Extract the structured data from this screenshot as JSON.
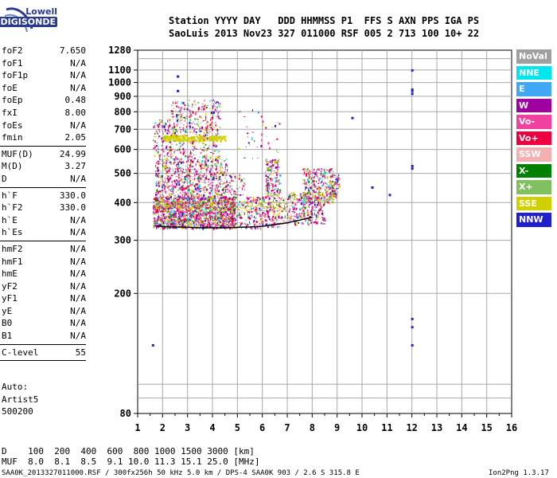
{
  "logo": {
    "line1": "Lowell",
    "line2": "DIGISONDE"
  },
  "header": {
    "row1": "Station YYYY DAY   DDD HHMMSS P1  FFS S AXN PPS IGA PS",
    "row2": "SaoLuis 2013 Nov23 327 011000 RSF 005 2 713 100 10+ 22"
  },
  "params": {
    "group1": [
      {
        "k": "foF2",
        "v": "7.650"
      },
      {
        "k": "foF1",
        "v": "N/A"
      },
      {
        "k": "foF1p",
        "v": "N/A"
      },
      {
        "k": "foE",
        "v": "N/A"
      },
      {
        "k": "foEp",
        "v": "0.48"
      },
      {
        "k": "fxI",
        "v": "8.00"
      },
      {
        "k": "foEs",
        "v": "N/A"
      },
      {
        "k": "fmin",
        "v": "2.05"
      }
    ],
    "group2": [
      {
        "k": "MUF(D)",
        "v": "24.99"
      },
      {
        "k": "M(D)",
        "v": "3.27"
      },
      {
        "k": "D",
        "v": "N/A"
      }
    ],
    "group3": [
      {
        "k": "h`F",
        "v": "330.0"
      },
      {
        "k": "h`F2",
        "v": "330.0"
      },
      {
        "k": "h`E",
        "v": "N/A"
      },
      {
        "k": "h`Es",
        "v": "N/A"
      }
    ],
    "group4": [
      {
        "k": "hmF2",
        "v": "N/A"
      },
      {
        "k": "hmF1",
        "v": "N/A"
      },
      {
        "k": "hmE",
        "v": "N/A"
      },
      {
        "k": "yF2",
        "v": "N/A"
      },
      {
        "k": "yF1",
        "v": "N/A"
      },
      {
        "k": "yE",
        "v": "N/A"
      },
      {
        "k": "B0",
        "v": "N/A"
      },
      {
        "k": "B1",
        "v": "N/A"
      }
    ],
    "group5": [
      {
        "k": "C-level",
        "v": "55"
      }
    ]
  },
  "auto": [
    "Auto:",
    "Artist5",
    "500200"
  ],
  "footer": {
    "drow": "D    100  200  400  600  800 1000 1500 3000 [km]",
    "mufrow": "MUF  8.0  8.1  8.5  9.1 10.0 11.3 15.1 25.0 [MHz]",
    "fileinfo": "SAA0K_2013327011000.RSF / 300fx256h 50 kHz 5.0 km / DPS-4 SAA0K 903 / 2.6 S 315.8 E",
    "version": "Ion2Png 1.3.17"
  },
  "legend": [
    {
      "label": "NoVal",
      "color": "#a0a0a0"
    },
    {
      "label": "NNE",
      "color": "#00e5ee"
    },
    {
      "label": "E",
      "color": "#3fa7f5"
    },
    {
      "label": "W",
      "color": "#a000a0"
    },
    {
      "label": "Vo-",
      "color": "#f040a0"
    },
    {
      "label": "Vo+",
      "color": "#ee0040"
    },
    {
      "label": "SSW",
      "color": "#f2b0b0"
    },
    {
      "label": "X-",
      "color": "#008000"
    },
    {
      "label": "X+",
      "color": "#80c060"
    },
    {
      "label": "SSE",
      "color": "#d0d000"
    },
    {
      "label": "NNW",
      "color": "#2020d0"
    }
  ],
  "chart_data": {
    "type": "scatter",
    "xlabel": "",
    "ylabel": "",
    "xlim": [
      1,
      16
    ],
    "ylim": [
      80,
      1280
    ],
    "x_ticks": [
      1,
      2,
      3,
      4,
      5,
      6,
      7,
      8,
      9,
      10,
      11,
      12,
      13,
      14,
      15,
      16
    ],
    "y_ticks": [
      80,
      200,
      300,
      400,
      500,
      600,
      700,
      800,
      900,
      1000,
      1100,
      1280
    ],
    "y_scale": "log",
    "grid": true,
    "series": [
      {
        "name": "W",
        "color": "#a000a0"
      },
      {
        "name": "Vo-",
        "color": "#f040a0"
      },
      {
        "name": "Vo+",
        "color": "#ee0040"
      },
      {
        "name": "SSE",
        "color": "#d0d000"
      },
      {
        "name": "X-",
        "color": "#008000"
      },
      {
        "name": "X+",
        "color": "#80c060"
      },
      {
        "name": "NNW",
        "color": "#2020d0"
      },
      {
        "name": "NNE",
        "color": "#00e5ee"
      },
      {
        "name": "E",
        "color": "#3fa7f5"
      },
      {
        "name": "SSW",
        "color": "#f2b0b0"
      }
    ],
    "trace": {
      "x": [
        1.7,
        2.0,
        2.5,
        3.0,
        3.5,
        4.0,
        4.5,
        5.0,
        5.5,
        6.0,
        6.5,
        7.0,
        7.5,
        8.0
      ],
      "y": [
        335,
        333,
        332,
        331,
        330,
        330,
        330,
        331,
        332,
        334,
        338,
        343,
        350,
        358
      ]
    },
    "isolated_points": {
      "x": [
        12.0,
        12.0,
        12.0,
        12.0,
        12.0,
        12.0,
        12.0,
        12.0,
        12.0,
        2.6,
        2.6,
        1.6,
        9.6,
        10.4,
        11.1
      ],
      "y": [
        1100,
        950,
        940,
        920,
        530,
        520,
        165,
        155,
        135,
        1050,
        940,
        135,
        765,
        450,
        425
      ]
    }
  }
}
